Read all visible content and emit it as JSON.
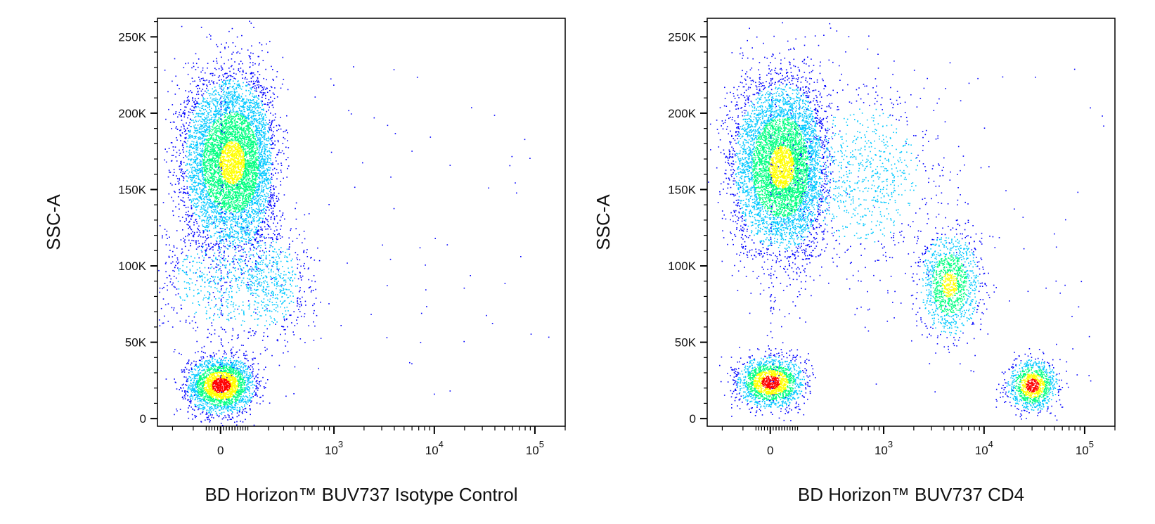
{
  "chart_data": [
    {
      "type": "scatter",
      "subtype": "flow-cytometry-density-dot-plot",
      "title": "",
      "xlabel": "BD Horizon™ BUV737 Isotype Control",
      "ylabel": "SSC-A",
      "x_scale": "biexponential",
      "y_scale": "linear",
      "ylim": [
        -5000,
        262144
      ],
      "xlim": [
        -300,
        200000
      ],
      "y_ticks": [
        0,
        50000,
        100000,
        150000,
        200000,
        250000
      ],
      "y_tick_labels": [
        "0",
        "50K",
        "100K",
        "150K",
        "200K",
        "250K"
      ],
      "x_tick_labels": [
        {
          "value": 0,
          "base": "0",
          "exp": ""
        },
        {
          "value": 1000,
          "base": "10",
          "exp": "3"
        },
        {
          "value": 10000,
          "base": "10",
          "exp": "4"
        },
        {
          "value": 100000,
          "base": "10",
          "exp": "5"
        }
      ],
      "grid": false,
      "color_scale": [
        "#0000ff",
        "#00c8ff",
        "#00ff80",
        "#ffff00",
        "#ff0000"
      ],
      "populations": [
        {
          "x_center": 0,
          "y_center": 22000,
          "x_spread": 60,
          "y_spread": 9000,
          "count": 2600,
          "density": "high"
        },
        {
          "x_center": 40,
          "y_center": 168000,
          "x_spread": 90,
          "y_spread": 28000,
          "count": 6500,
          "density": "medium"
        },
        {
          "x_center": 120,
          "y_center": 90000,
          "x_spread": 200,
          "y_spread": 20000,
          "count": 1100,
          "density": "low"
        }
      ]
    },
    {
      "type": "scatter",
      "subtype": "flow-cytometry-density-dot-plot",
      "title": "",
      "xlabel": "BD Horizon™ BUV737 CD4",
      "ylabel": "SSC-A",
      "x_scale": "biexponential",
      "y_scale": "linear",
      "ylim": [
        -5000,
        262144
      ],
      "xlim": [
        -300,
        200000
      ],
      "y_ticks": [
        0,
        50000,
        100000,
        150000,
        200000,
        250000
      ],
      "y_tick_labels": [
        "0",
        "50K",
        "100K",
        "150K",
        "200K",
        "250K"
      ],
      "x_tick_labels": [
        {
          "value": 0,
          "base": "0",
          "exp": ""
        },
        {
          "value": 1000,
          "base": "10",
          "exp": "3"
        },
        {
          "value": 10000,
          "base": "10",
          "exp": "4"
        },
        {
          "value": 100000,
          "base": "10",
          "exp": "5"
        }
      ],
      "grid": false,
      "color_scale": [
        "#0000ff",
        "#00c8ff",
        "#00ff80",
        "#ffff00",
        "#ff0000"
      ],
      "populations": [
        {
          "x_center": 0,
          "y_center": 24000,
          "x_spread": 60,
          "y_spread": 8000,
          "count": 1800,
          "density": "high"
        },
        {
          "x_center": 40,
          "y_center": 165000,
          "x_spread": 90,
          "y_spread": 28000,
          "count": 6000,
          "density": "medium"
        },
        {
          "x_center": 4500,
          "y_center": 88000,
          "x_spread": 1500,
          "y_spread": 17000,
          "count": 1300,
          "density": "medium"
        },
        {
          "x_center": 30000,
          "y_center": 22000,
          "x_spread": 8000,
          "y_spread": 8000,
          "count": 1100,
          "density": "high"
        },
        {
          "x_center": 600,
          "y_center": 160000,
          "x_spread": 500,
          "y_spread": 30000,
          "count": 900,
          "density": "low"
        }
      ]
    }
  ]
}
